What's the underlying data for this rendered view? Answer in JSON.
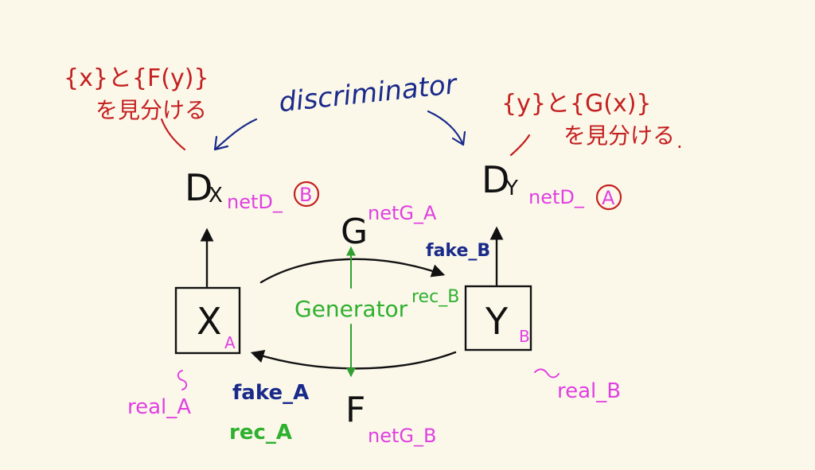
{
  "colors": {
    "background": "#fbf8ea",
    "black": "#111111",
    "magenta": "#e040e0",
    "navy": "#1a2a8a",
    "green": "#2fb02f",
    "red": "#c42020"
  },
  "annotations": {
    "left_note_line1": "{x}と{F(y)}",
    "left_note_line2": "を見分ける",
    "right_note_line1": "{y}と{G(x)}",
    "right_note_line2": "を見分ける",
    "discriminator": "discriminator"
  },
  "nodes": {
    "dx": {
      "letter": "D",
      "sub": "X",
      "net_prefix": "netD_",
      "net_circled": "B"
    },
    "dy": {
      "letter": "D",
      "sub": "Y",
      "net_prefix": "netD_",
      "net_circled": "A"
    },
    "g": {
      "letter": "G",
      "net": "netG_A"
    },
    "f": {
      "letter": "F",
      "net": "netG_B"
    },
    "x_box": {
      "letter": "X",
      "sub": "A",
      "real": "real_A"
    },
    "y_box": {
      "letter": "Y",
      "sub": "B",
      "real": "real_B"
    }
  },
  "labels": {
    "fake_b": "fake_B",
    "rec_b": "rec_B",
    "generator": "Generator",
    "fake_a": "fake_A",
    "rec_a": "rec_A",
    "dot": "."
  }
}
